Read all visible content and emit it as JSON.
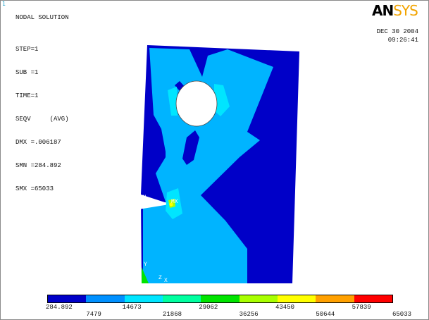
{
  "window_index": "1",
  "header": {
    "title": "NODAL SOLUTION"
  },
  "info": {
    "lines": [
      "STEP=1",
      "SUB =1",
      "TIME=1",
      "SEQV     (AVG)",
      "DMX =.006187",
      "SMN =284.892",
      "SMX =65033"
    ]
  },
  "logo": {
    "part1": "AN",
    "part2": "SYS"
  },
  "date": "DEC 30 2004",
  "time": "09:26:41",
  "markers": {
    "mn": "MN",
    "mx": "MX",
    "axis_y": "Y",
    "axis_z": "Z",
    "axis_x": "X"
  },
  "legend": {
    "colors": [
      "#0000c8",
      "#0090ff",
      "#00e5ff",
      "#00ffa0",
      "#00e400",
      "#a8ff00",
      "#ffff00",
      "#ffa000",
      "#ff0000"
    ],
    "labels_top": [
      "284.892",
      "14673",
      "29062",
      "43450",
      "57839"
    ],
    "labels_bottom": [
      "7479",
      "21868",
      "36256",
      "50644",
      "65033"
    ]
  },
  "colors": {
    "dark_blue": "#0000c8",
    "light_blue": "#00b4ff",
    "cyan": "#00e5ff"
  }
}
